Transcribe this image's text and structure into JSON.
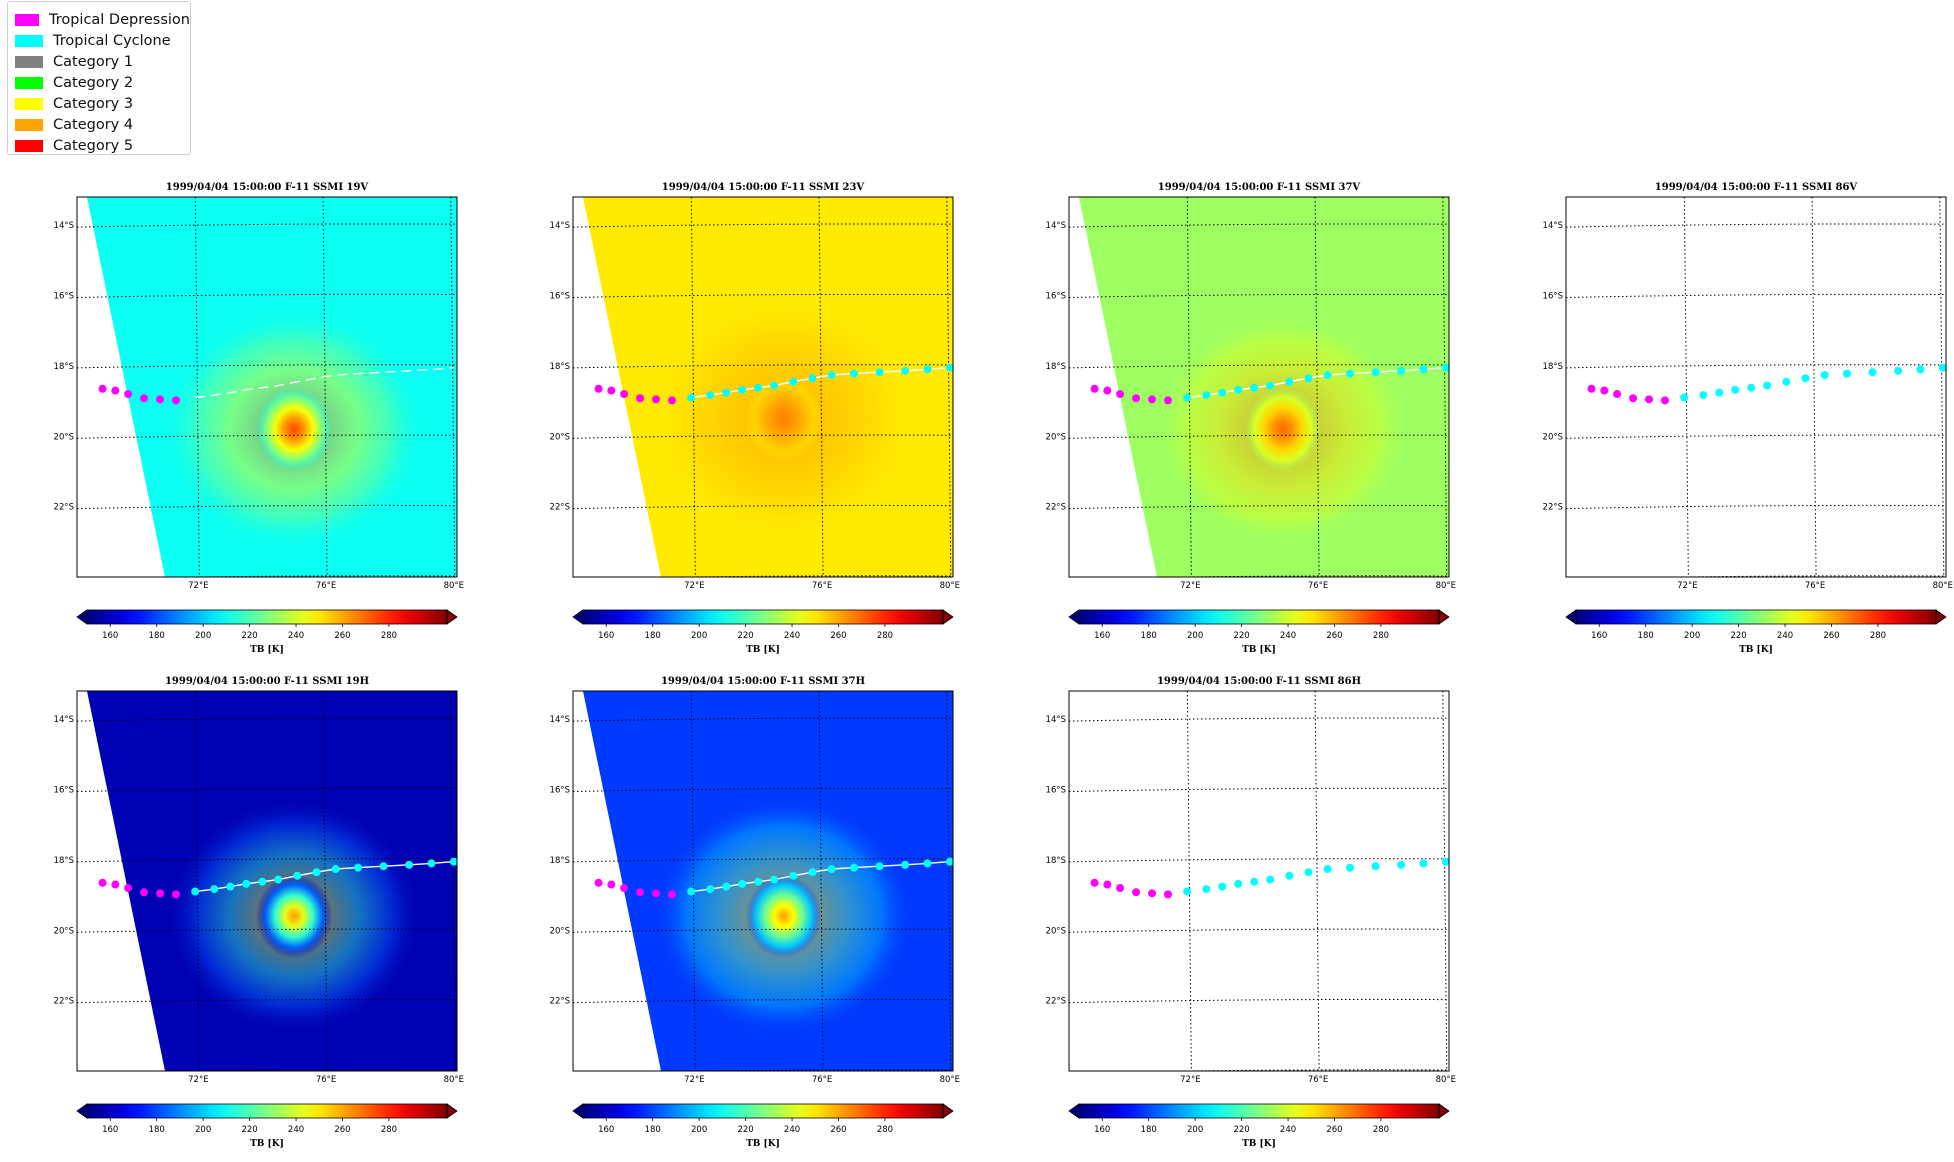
{
  "legend": {
    "items": [
      {
        "label": "Tropical Depression",
        "color": "#ff00ff"
      },
      {
        "label": "Tropical Cyclone",
        "color": "#00ffff"
      },
      {
        "label": "Category 1",
        "color": "#808080"
      },
      {
        "label": "Category 2",
        "color": "#00ff00"
      },
      {
        "label": "Category 3",
        "color": "#ffff00"
      },
      {
        "label": "Category 4",
        "color": "#ffa500"
      },
      {
        "label": "Category 5",
        "color": "#ff0000"
      }
    ]
  },
  "chart_data": [
    {
      "type": "heatmap",
      "title": "1999/04/04 15:00:00  F-11 SSMI 19V",
      "lat_ticks": [
        "14°S",
        "16°S",
        "18°S",
        "20°S",
        "22°S"
      ],
      "lon_ticks": [
        "72°E",
        "76°E",
        "80°E"
      ],
      "colorbar": {
        "ticks": [
          "160",
          "180",
          "200",
          "220",
          "240",
          "260",
          "280"
        ],
        "label": "TB [K]",
        "range": [
          150,
          305
        ],
        "extend": "both"
      },
      "field": {
        "background_tb": 210,
        "core_tb": 275,
        "core_center": [
          75.0,
          -19.8
        ]
      },
      "track": {
        "lon": [
          69.0,
          69.4,
          69.8,
          70.3,
          70.8,
          71.3,
          71.9,
          72.5,
          73.0,
          73.5,
          74.0,
          74.5,
          75.1,
          75.7,
          76.3,
          77.0,
          77.8,
          78.6,
          79.3,
          80.0
        ],
        "lat": [
          -18.65,
          -18.7,
          -18.8,
          -18.92,
          -18.95,
          -18.98,
          -18.9,
          -18.83,
          -18.76,
          -18.68,
          -18.62,
          -18.56,
          -18.45,
          -18.35,
          -18.26,
          -18.22,
          -18.18,
          -18.14,
          -18.1,
          -18.05
        ],
        "class": [
          "TD",
          "TD",
          "TD",
          "TD",
          "TD",
          "TD",
          "TC",
          "TC",
          "TC",
          "TC",
          "TC",
          "TC",
          "TC",
          "TC",
          "TC",
          "TC",
          "TC",
          "TC",
          "TC",
          "TC"
        ],
        "markers_shown": 6,
        "line": "dashed"
      }
    },
    {
      "type": "heatmap",
      "title": "1999/04/04 15:00:00  F-11 SSMI 23V",
      "lat_ticks": [
        "14°S",
        "16°S",
        "18°S",
        "20°S",
        "22°S"
      ],
      "lon_ticks": [
        "72°E",
        "76°E",
        "80°E"
      ],
      "colorbar": {
        "ticks": [
          "160",
          "180",
          "200",
          "220",
          "240",
          "260",
          "280"
        ],
        "label": "TB [K]",
        "range": [
          150,
          305
        ],
        "extend": "both"
      },
      "field": {
        "background_tb": 250,
        "core_tb": 266,
        "core_center": [
          74.8,
          -19.5
        ]
      },
      "track": {
        "lon": [
          69.0,
          69.4,
          69.8,
          70.3,
          70.8,
          71.3,
          71.9,
          72.5,
          73.0,
          73.5,
          74.0,
          74.5,
          75.1,
          75.7,
          76.3,
          77.0,
          77.8,
          78.6,
          79.3,
          80.0
        ],
        "lat": [
          -18.65,
          -18.7,
          -18.8,
          -18.92,
          -18.95,
          -18.98,
          -18.9,
          -18.83,
          -18.76,
          -18.68,
          -18.62,
          -18.56,
          -18.45,
          -18.35,
          -18.26,
          -18.22,
          -18.18,
          -18.14,
          -18.1,
          -18.05
        ],
        "class": [
          "TD",
          "TD",
          "TD",
          "TD",
          "TD",
          "TD",
          "TC",
          "TC",
          "TC",
          "TC",
          "TC",
          "TC",
          "TC",
          "TC",
          "TC",
          "TC",
          "TC",
          "TC",
          "TC",
          "TC"
        ],
        "markers_shown": 20,
        "line": "solid"
      }
    },
    {
      "type": "heatmap",
      "title": "1999/04/04 15:00:00  F-11 SSMI 37V",
      "lat_ticks": [
        "14°S",
        "16°S",
        "18°S",
        "20°S",
        "22°S"
      ],
      "lon_ticks": [
        "72°E",
        "76°E",
        "80°E"
      ],
      "colorbar": {
        "ticks": [
          "160",
          "180",
          "200",
          "220",
          "240",
          "260",
          "280"
        ],
        "label": "TB [K]",
        "range": [
          150,
          305
        ],
        "extend": "both"
      },
      "field": {
        "background_tb": 232,
        "core_tb": 270,
        "core_center": [
          74.9,
          -19.8
        ]
      },
      "track": {
        "lon": [
          69.0,
          69.4,
          69.8,
          70.3,
          70.8,
          71.3,
          71.9,
          72.5,
          73.0,
          73.5,
          74.0,
          74.5,
          75.1,
          75.7,
          76.3,
          77.0,
          77.8,
          78.6,
          79.3,
          80.0
        ],
        "lat": [
          -18.65,
          -18.7,
          -18.8,
          -18.92,
          -18.95,
          -18.98,
          -18.9,
          -18.83,
          -18.76,
          -18.68,
          -18.62,
          -18.56,
          -18.45,
          -18.35,
          -18.26,
          -18.22,
          -18.18,
          -18.14,
          -18.1,
          -18.05
        ],
        "class": [
          "TD",
          "TD",
          "TD",
          "TD",
          "TD",
          "TD",
          "TC",
          "TC",
          "TC",
          "TC",
          "TC",
          "TC",
          "TC",
          "TC",
          "TC",
          "TC",
          "TC",
          "TC",
          "TC",
          "TC"
        ],
        "markers_shown": 20,
        "line": "solid"
      }
    },
    {
      "type": "heatmap",
      "title": "1999/04/04 15:00:00  F-11 SSMI 86V",
      "lat_ticks": [
        "14°S",
        "16°S",
        "18°S",
        "20°S",
        "22°S"
      ],
      "lon_ticks": [
        "72°E",
        "76°E",
        "80°E"
      ],
      "colorbar": {
        "ticks": [
          "160",
          "180",
          "200",
          "220",
          "240",
          "260",
          "280"
        ],
        "label": "TB [K]",
        "range": [
          150,
          305
        ],
        "extend": "both"
      },
      "field": null,
      "track": {
        "lon": [
          69.0,
          69.4,
          69.8,
          70.3,
          70.8,
          71.3,
          71.9,
          72.5,
          73.0,
          73.5,
          74.0,
          74.5,
          75.1,
          75.7,
          76.3,
          77.0,
          77.8,
          78.6,
          79.3,
          80.0
        ],
        "lat": [
          -18.65,
          -18.7,
          -18.8,
          -18.92,
          -18.95,
          -18.98,
          -18.9,
          -18.83,
          -18.76,
          -18.68,
          -18.62,
          -18.56,
          -18.45,
          -18.35,
          -18.26,
          -18.22,
          -18.18,
          -18.14,
          -18.1,
          -18.05
        ],
        "class": [
          "TD",
          "TD",
          "TD",
          "TD",
          "TD",
          "TD",
          "TC",
          "TC",
          "TC",
          "TC",
          "TC",
          "TC",
          "TC",
          "TC",
          "TC",
          "TC",
          "TC",
          "TC",
          "TC",
          "TC"
        ],
        "markers_shown": 20,
        "line": "none"
      }
    },
    {
      "type": "heatmap",
      "title": "1999/04/04 15:00:00  F-11 SSMI 19H",
      "lat_ticks": [
        "14°S",
        "16°S",
        "18°S",
        "20°S",
        "22°S"
      ],
      "lon_ticks": [
        "72°E",
        "76°E",
        "80°E"
      ],
      "colorbar": {
        "ticks": [
          "160",
          "180",
          "200",
          "220",
          "240",
          "260",
          "280"
        ],
        "label": "TB [K]",
        "range": [
          150,
          305
        ],
        "extend": "both"
      },
      "field": {
        "background_tb": 158,
        "core_tb": 262,
        "core_center": [
          75.0,
          -19.6
        ]
      },
      "track": {
        "lon": [
          69.0,
          69.4,
          69.8,
          70.3,
          70.8,
          71.3,
          71.9,
          72.5,
          73.0,
          73.5,
          74.0,
          74.5,
          75.1,
          75.7,
          76.3,
          77.0,
          77.8,
          78.6,
          79.3,
          80.0
        ],
        "lat": [
          -18.65,
          -18.7,
          -18.8,
          -18.92,
          -18.95,
          -18.98,
          -18.9,
          -18.83,
          -18.76,
          -18.68,
          -18.62,
          -18.56,
          -18.45,
          -18.35,
          -18.26,
          -18.22,
          -18.18,
          -18.14,
          -18.1,
          -18.05
        ],
        "class": [
          "TD",
          "TD",
          "TD",
          "TD",
          "TD",
          "TD",
          "TC",
          "TC",
          "TC",
          "TC",
          "TC",
          "TC",
          "TC",
          "TC",
          "TC",
          "TC",
          "TC",
          "TC",
          "TC",
          "TC"
        ],
        "markers_shown": 20,
        "line": "solid"
      }
    },
    {
      "type": "heatmap",
      "title": "1999/04/04 15:00:00  F-11 SSMI 37H",
      "lat_ticks": [
        "14°S",
        "16°S",
        "18°S",
        "20°S",
        "22°S"
      ],
      "lon_ticks": [
        "72°E",
        "76°E",
        "80°E"
      ],
      "colorbar": {
        "ticks": [
          "160",
          "180",
          "200",
          "220",
          "240",
          "260",
          "280"
        ],
        "label": "TB [K]",
        "range": [
          150,
          305
        ],
        "extend": "both"
      },
      "field": {
        "background_tb": 178,
        "core_tb": 262,
        "core_center": [
          74.8,
          -19.6
        ]
      },
      "track": {
        "lon": [
          69.0,
          69.4,
          69.8,
          70.3,
          70.8,
          71.3,
          71.9,
          72.5,
          73.0,
          73.5,
          74.0,
          74.5,
          75.1,
          75.7,
          76.3,
          77.0,
          77.8,
          78.6,
          79.3,
          80.0
        ],
        "lat": [
          -18.65,
          -18.7,
          -18.8,
          -18.92,
          -18.95,
          -18.98,
          -18.9,
          -18.83,
          -18.76,
          -18.68,
          -18.62,
          -18.56,
          -18.45,
          -18.35,
          -18.26,
          -18.22,
          -18.18,
          -18.14,
          -18.1,
          -18.05
        ],
        "class": [
          "TD",
          "TD",
          "TD",
          "TD",
          "TD",
          "TD",
          "TC",
          "TC",
          "TC",
          "TC",
          "TC",
          "TC",
          "TC",
          "TC",
          "TC",
          "TC",
          "TC",
          "TC",
          "TC",
          "TC"
        ],
        "markers_shown": 20,
        "line": "solid"
      }
    },
    {
      "type": "heatmap",
      "title": "1999/04/04 15:00:00  F-11 SSMI 86H",
      "lat_ticks": [
        "14°S",
        "16°S",
        "18°S",
        "20°S",
        "22°S"
      ],
      "lon_ticks": [
        "72°E",
        "76°E",
        "80°E"
      ],
      "colorbar": {
        "ticks": [
          "160",
          "180",
          "200",
          "220",
          "240",
          "260",
          "280"
        ],
        "label": "TB [K]",
        "range": [
          150,
          305
        ],
        "extend": "both"
      },
      "field": null,
      "track": {
        "lon": [
          69.0,
          69.4,
          69.8,
          70.3,
          70.8,
          71.3,
          71.9,
          72.5,
          73.0,
          73.5,
          74.0,
          74.5,
          75.1,
          75.7,
          76.3,
          77.0,
          77.8,
          78.6,
          79.3,
          80.0
        ],
        "lat": [
          -18.65,
          -18.7,
          -18.8,
          -18.92,
          -18.95,
          -18.98,
          -18.9,
          -18.83,
          -18.76,
          -18.68,
          -18.62,
          -18.56,
          -18.45,
          -18.35,
          -18.26,
          -18.22,
          -18.18,
          -18.14,
          -18.1,
          -18.05
        ],
        "class": [
          "TD",
          "TD",
          "TD",
          "TD",
          "TD",
          "TD",
          "TC",
          "TC",
          "TC",
          "TC",
          "TC",
          "TC",
          "TC",
          "TC",
          "TC",
          "TC",
          "TC",
          "TC",
          "TC",
          "TC"
        ],
        "markers_shown": 20,
        "line": "none"
      }
    }
  ]
}
